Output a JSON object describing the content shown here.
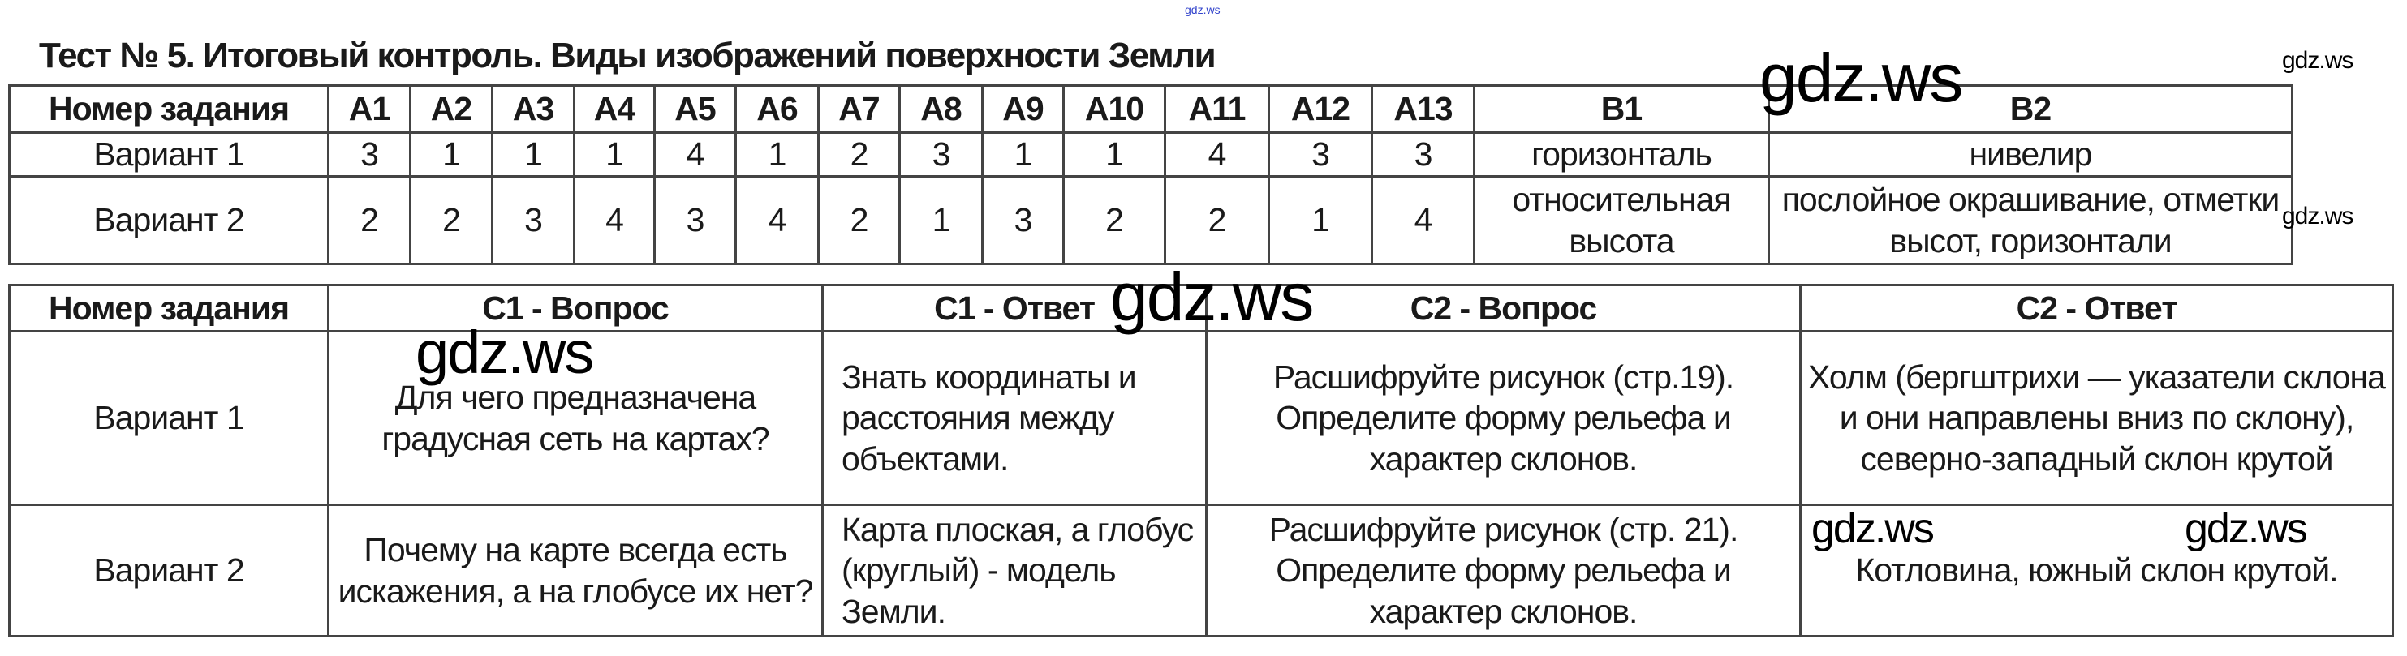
{
  "title": "Тест № 5. Итоговый контроль. Виды изображений поверхности Земли",
  "watermark": "gdz.ws",
  "table1": {
    "headers": [
      "Номер задания",
      "A1",
      "A2",
      "A3",
      "A4",
      "A5",
      "A6",
      "A7",
      "A8",
      "A9",
      "A10",
      "A11",
      "A12",
      "A13",
      "B1",
      "B2"
    ],
    "rows": [
      [
        "Вариант 1",
        "3",
        "1",
        "1",
        "1",
        "4",
        "1",
        "2",
        "3",
        "1",
        "1",
        "4",
        "3",
        "3",
        "горизонталь",
        "нивелир"
      ],
      [
        "Вариант 2",
        "2",
        "2",
        "3",
        "4",
        "3",
        "4",
        "2",
        "1",
        "3",
        "2",
        "2",
        "1",
        "4",
        "относительная высота",
        "послойное окрашивание, отметки высот, горизонтали"
      ]
    ]
  },
  "table2": {
    "headers": [
      "Номер задания",
      "C1 - Вопрос",
      "C1 - Ответ",
      "C2 - Вопрос",
      "C2 - Ответ"
    ],
    "rows": [
      [
        "Вариант 1",
        "Для чего предназначена градусная сеть на картах?",
        "Знать координаты и расстояния между объектами.",
        "Расшифруйте рисунок (стр.19). Определите форму рельефа и характер склонов.",
        "Холм (бергштрихи — указатели склона и они направлены вниз по склону), северно-западный склон крутой"
      ],
      [
        "Вариант 2",
        "Почему на карте всегда есть искажения, а на глобусе их нет?",
        "Карта плоская, а глобус (круглый) - модель Земли.",
        "Расшифруйте рисунок (стр. 21). Определите форму рельефа и характер склонов.",
        "Котловина, южный склон крутой."
      ]
    ]
  }
}
